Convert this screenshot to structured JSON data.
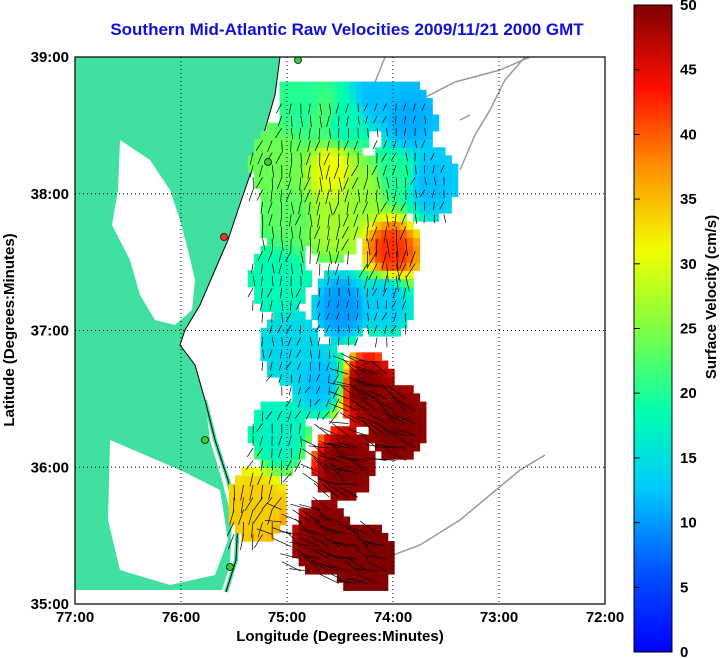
{
  "chart_data": {
    "type": "heatmap",
    "title": "Southern Mid-Atlantic Raw Velocities 2009/11/21 2000 GMT",
    "xlabel": "Longitude (Degrees:Minutes)",
    "ylabel": "Latitude (Degrees:Minutes)",
    "colorbar_label": "Surface Velocity (cm/s)",
    "x_ticks": [
      "77:00",
      "76:00",
      "75:00",
      "74:00",
      "73:00",
      "72:00"
    ],
    "y_ticks": [
      "39:00",
      "38:00",
      "37:00",
      "36:00",
      "35:00"
    ],
    "colorbar_ticks": [
      "50",
      "45",
      "40",
      "35",
      "30",
      "25",
      "20",
      "15",
      "10",
      "5",
      "0"
    ],
    "xlim": [
      -77,
      -72
    ],
    "ylim": [
      35,
      39
    ],
    "clim": [
      0,
      50
    ],
    "grid": true,
    "colormap": "jet",
    "land_color": "#40e0a0",
    "speed_field": [
      {
        "lon": -74.85,
        "lat": 38.6,
        "speed": 20
      },
      {
        "lon": -74.7,
        "lat": 38.55,
        "speed": 22
      },
      {
        "lon": -74.5,
        "lat": 38.5,
        "speed": 18
      },
      {
        "lon": -74.2,
        "lat": 38.7,
        "speed": 12
      },
      {
        "lon": -73.9,
        "lat": 38.5,
        "speed": 11
      },
      {
        "lon": -75.1,
        "lat": 38.2,
        "speed": 24
      },
      {
        "lon": -74.6,
        "lat": 38.15,
        "speed": 31
      },
      {
        "lon": -74.3,
        "lat": 38.0,
        "speed": 26
      },
      {
        "lon": -74.0,
        "lat": 38.1,
        "speed": 20
      },
      {
        "lon": -73.7,
        "lat": 38.05,
        "speed": 12
      },
      {
        "lon": -75.0,
        "lat": 37.8,
        "speed": 23
      },
      {
        "lon": -74.6,
        "lat": 37.75,
        "speed": 27
      },
      {
        "lon": -74.05,
        "lat": 37.55,
        "speed": 42
      },
      {
        "lon": -75.1,
        "lat": 37.35,
        "speed": 18
      },
      {
        "lon": -74.5,
        "lat": 37.15,
        "speed": 10
      },
      {
        "lon": -74.1,
        "lat": 37.2,
        "speed": 13
      },
      {
        "lon": -75.0,
        "lat": 36.85,
        "speed": 14
      },
      {
        "lon": -74.7,
        "lat": 36.6,
        "speed": 12
      },
      {
        "lon": -74.3,
        "lat": 36.55,
        "speed": 50
      },
      {
        "lon": -74.0,
        "lat": 36.3,
        "speed": 50
      },
      {
        "lon": -75.1,
        "lat": 36.2,
        "speed": 17
      },
      {
        "lon": -74.5,
        "lat": 36.0,
        "speed": 50
      },
      {
        "lon": -75.3,
        "lat": 35.7,
        "speed": 34
      },
      {
        "lon": -74.7,
        "lat": 35.45,
        "speed": 50
      },
      {
        "lon": -74.3,
        "lat": 35.3,
        "speed": 50
      }
    ]
  }
}
